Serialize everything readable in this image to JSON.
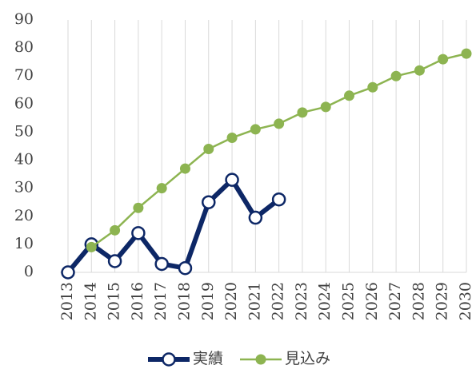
{
  "chart_data": {
    "type": "line",
    "categories": [
      "2013",
      "2014",
      "2015",
      "2016",
      "2017",
      "2018",
      "2019",
      "2020",
      "2021",
      "2022",
      "2023",
      "2024",
      "2025",
      "2026",
      "2027",
      "2028",
      "2029",
      "2030"
    ],
    "series": [
      {
        "name": "実績",
        "color": "#0d2766",
        "values": [
          0,
          10,
          4,
          14,
          3,
          1.5,
          25,
          33,
          19.5,
          26,
          null,
          null,
          null,
          null,
          null,
          null,
          null,
          null
        ]
      },
      {
        "name": "見込み",
        "color": "#8db451",
        "values": [
          null,
          9,
          15,
          23,
          30,
          37,
          44,
          48,
          51,
          53,
          57,
          59,
          63,
          66,
          70,
          72,
          76,
          78
        ]
      }
    ],
    "ylim": [
      0,
      90
    ],
    "yticks": [
      0,
      10,
      20,
      30,
      40,
      50,
      60,
      70,
      80,
      90
    ],
    "grid": true,
    "legend": "bottom"
  }
}
